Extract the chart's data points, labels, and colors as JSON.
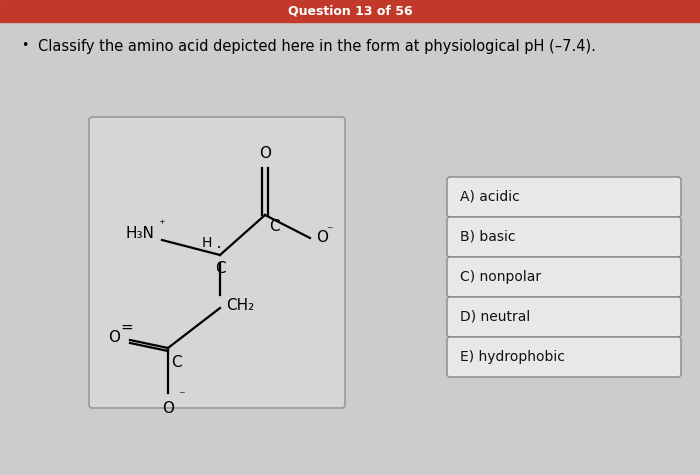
{
  "header_text": "Question 13 of 56",
  "header_bg": "#c0392b",
  "header_text_color": "#ffffff",
  "bg_color": "#cccccc",
  "question_text": "Classify the amino acid depicted here in the form at physiological pH (–7.4).",
  "options": [
    "A) acidic",
    "B) basic",
    "C) nonpolar",
    "D) neutral",
    "E) hydrophobic"
  ],
  "option_box_color": "#e8e8e8",
  "option_border_color": "#888888",
  "option_text_color": "#111111",
  "structure_box_color": "#d6d6d6",
  "structure_border_color": "#999999",
  "title_fontsize": 10.5,
  "header_fontsize": 9,
  "option_fontsize": 10
}
